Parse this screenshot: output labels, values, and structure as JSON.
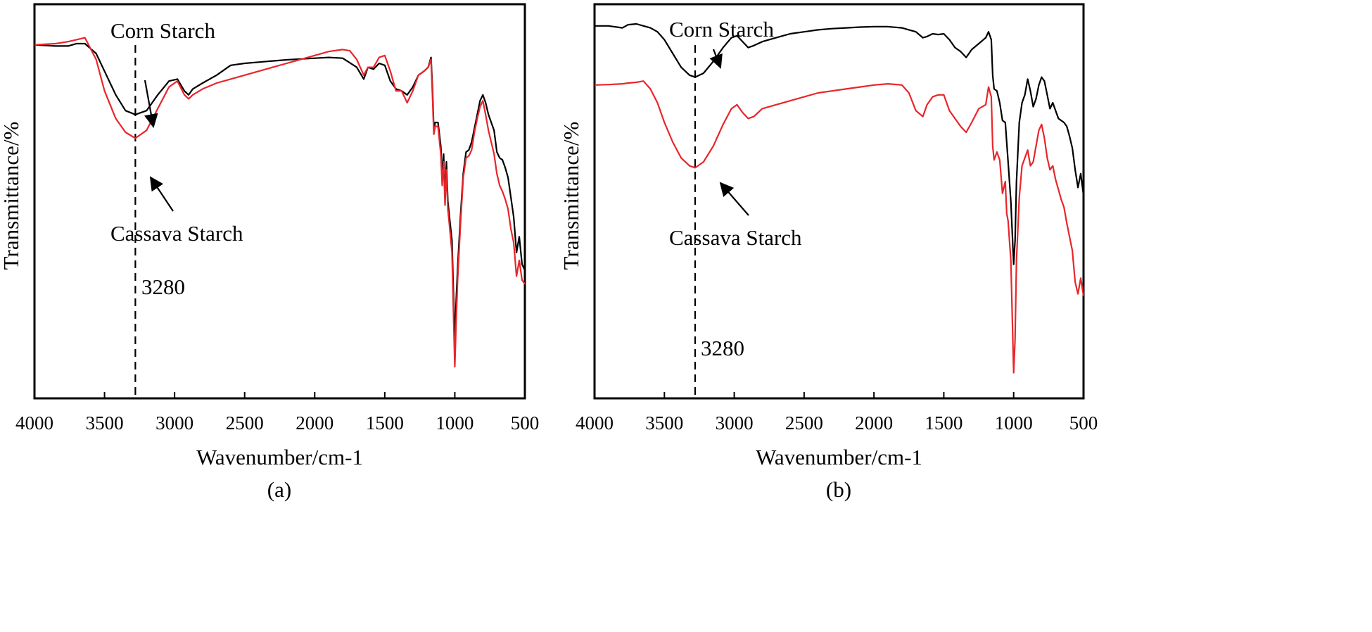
{
  "figure": {
    "panels": [
      "(a)",
      "(b)"
    ]
  },
  "colors": {
    "corn": "#000000",
    "cassava": "#e8262a",
    "frame": "#000000"
  },
  "chart_data": [
    {
      "type": "line",
      "panel": "(a)",
      "title": "",
      "caption": "(a)",
      "xlabel": "Wavenumber/cm-1",
      "ylabel": "Transmittance/%",
      "xlim": [
        4000,
        500
      ],
      "ylim": [
        0,
        100
      ],
      "x_reversed": true,
      "xticks": [
        4000,
        3500,
        3000,
        2500,
        2000,
        1500,
        1000,
        500
      ],
      "xtick_labels": [
        "4000",
        "3500",
        "3000",
        "2500",
        "2000",
        "1500",
        "1000",
        "500"
      ],
      "y_ticks_shown": false,
      "grid": false,
      "reference_line": {
        "x": 3280,
        "label": "3280",
        "style": "dashed"
      },
      "annotations": [
        {
          "text": "Corn Starch",
          "points_to": "Corn Starch"
        },
        {
          "text": "Cassava Starch",
          "points_to": "Cassava Starch"
        }
      ],
      "series": [
        {
          "name": "Corn Starch",
          "x": [
            4000,
            3850,
            3760,
            3700,
            3640,
            3560,
            3500,
            3420,
            3350,
            3280,
            3200,
            3120,
            3040,
            2980,
            2930,
            2900,
            2870,
            2800,
            2700,
            2600,
            2500,
            2400,
            2300,
            2200,
            2100,
            2000,
            1900,
            1800,
            1700,
            1650,
            1620,
            1580,
            1540,
            1500,
            1460,
            1420,
            1380,
            1340,
            1300,
            1260,
            1220,
            1190,
            1170,
            1160,
            1150,
            1140,
            1120,
            1100,
            1090,
            1080,
            1070,
            1060,
            1050,
            1040,
            1020,
            1000,
            990,
            980,
            960,
            940,
            920,
            900,
            880,
            860,
            840,
            820,
            800,
            780,
            760,
            740,
            720,
            700,
            680,
            660,
            640,
            620,
            600,
            580,
            560,
            540,
            520,
            500
          ],
          "values": [
            89.7,
            89.4,
            89.4,
            90.0,
            90.0,
            87.5,
            83.0,
            77.0,
            73.0,
            72.0,
            73.0,
            77.0,
            80.5,
            81.0,
            78.0,
            77.0,
            78.5,
            80.0,
            82.0,
            84.5,
            85.0,
            85.3,
            85.6,
            85.9,
            86.1,
            86.3,
            86.5,
            86.3,
            84.0,
            81.0,
            84.0,
            83.5,
            85.0,
            84.5,
            80.5,
            78.5,
            78.0,
            77.0,
            79.0,
            82.0,
            83.0,
            84.0,
            86.5,
            79.0,
            68.0,
            70.0,
            70.0,
            64.0,
            56.0,
            62.0,
            51.0,
            60.0,
            50.0,
            46.5,
            40.0,
            14.5,
            25.0,
            33.0,
            46.0,
            57.0,
            62.5,
            63.0,
            65.0,
            68.5,
            72.0,
            75.5,
            77.0,
            75.0,
            72.0,
            70.0,
            68.0,
            62.5,
            61.0,
            60.5,
            58.5,
            56.0,
            51.0,
            46.0,
            37.0,
            41.0,
            34.0,
            32.5
          ]
        },
        {
          "name": "Cassava Starch",
          "x": [
            4000,
            3850,
            3760,
            3700,
            3640,
            3560,
            3500,
            3420,
            3350,
            3280,
            3200,
            3120,
            3040,
            2980,
            2930,
            2900,
            2870,
            2800,
            2700,
            2600,
            2500,
            2400,
            2300,
            2200,
            2100,
            2000,
            1900,
            1800,
            1750,
            1700,
            1650,
            1620,
            1580,
            1540,
            1500,
            1460,
            1420,
            1380,
            1340,
            1300,
            1260,
            1220,
            1190,
            1170,
            1160,
            1150,
            1140,
            1120,
            1100,
            1090,
            1080,
            1070,
            1060,
            1050,
            1040,
            1020,
            1000,
            990,
            980,
            960,
            940,
            920,
            900,
            880,
            860,
            840,
            820,
            800,
            780,
            760,
            740,
            720,
            700,
            680,
            660,
            640,
            620,
            600,
            580,
            560,
            540,
            520,
            500
          ],
          "values": [
            89.7,
            90.0,
            90.5,
            91.0,
            91.5,
            86.0,
            78.0,
            71.0,
            67.5,
            66.0,
            68.0,
            73.5,
            79.0,
            80.5,
            77.0,
            76.0,
            77.0,
            78.5,
            80.0,
            81.0,
            82.0,
            83.0,
            84.0,
            85.0,
            86.0,
            87.0,
            88.0,
            88.5,
            88.2,
            86.0,
            82.0,
            84.0,
            84.0,
            86.5,
            87.0,
            83.0,
            78.0,
            78.0,
            75.0,
            78.0,
            82.0,
            83.0,
            84.0,
            86.0,
            77.0,
            67.0,
            69.0,
            69.0,
            62.0,
            54.0,
            60.0,
            49.0,
            58.0,
            48.0,
            44.5,
            37.0,
            8.0,
            20.0,
            30.0,
            44.0,
            56.0,
            61.0,
            61.5,
            63.0,
            67.5,
            71.0,
            74.0,
            75.5,
            72.0,
            68.0,
            65.0,
            62.0,
            57.0,
            54.0,
            52.5,
            50.5,
            48.0,
            43.0,
            39.5,
            31.0,
            35.0,
            30.0,
            29.0
          ]
        }
      ]
    },
    {
      "type": "line",
      "panel": "(b)",
      "title": "",
      "caption": "(b)",
      "xlabel": "Wavenumber/cm-1",
      "ylabel": "Transmittance/%",
      "xlim": [
        4000,
        500
      ],
      "ylim": [
        0,
        100
      ],
      "x_reversed": true,
      "xticks": [
        4000,
        3500,
        3000,
        2500,
        2000,
        1500,
        1000,
        500
      ],
      "xtick_labels": [
        "4000",
        "3500",
        "3000",
        "2500",
        "2000",
        "1500",
        "1000",
        "500"
      ],
      "y_ticks_shown": false,
      "grid": false,
      "reference_line": {
        "x": 3280,
        "label": "3280",
        "style": "dashed"
      },
      "annotations": [
        {
          "text": "Corn Starch",
          "points_to": "Corn Starch"
        },
        {
          "text": "Cassava Starch",
          "points_to": "Cassava Starch"
        }
      ],
      "series": [
        {
          "name": "Corn Starch",
          "x": [
            4000,
            3900,
            3800,
            3760,
            3700,
            3650,
            3600,
            3550,
            3500,
            3440,
            3380,
            3320,
            3280,
            3220,
            3150,
            3080,
            3020,
            2980,
            2940,
            2900,
            2860,
            2800,
            2700,
            2600,
            2500,
            2400,
            2300,
            2200,
            2100,
            2000,
            1900,
            1800,
            1750,
            1700,
            1650,
            1620,
            1580,
            1540,
            1500,
            1460,
            1420,
            1380,
            1340,
            1300,
            1250,
            1200,
            1180,
            1160,
            1150,
            1140,
            1120,
            1100,
            1080,
            1060,
            1050,
            1040,
            1020,
            1000,
            990,
            980,
            960,
            940,
            920,
            900,
            880,
            860,
            840,
            820,
            800,
            780,
            760,
            740,
            720,
            700,
            680,
            660,
            640,
            620,
            600,
            580,
            560,
            540,
            520,
            500
          ],
          "values": [
            94.5,
            94.5,
            94.0,
            94.8,
            95.0,
            94.5,
            94.0,
            93.0,
            91.0,
            87.5,
            84.0,
            82.0,
            81.5,
            82.5,
            85.5,
            89.0,
            91.5,
            92.0,
            90.5,
            89.0,
            89.5,
            90.5,
            91.5,
            92.5,
            93.0,
            93.5,
            93.8,
            94.0,
            94.2,
            94.3,
            94.3,
            94.0,
            93.5,
            93.0,
            91.5,
            91.8,
            92.5,
            92.3,
            92.5,
            91.0,
            89.0,
            88.0,
            86.5,
            88.5,
            90.0,
            91.5,
            93.0,
            91.0,
            82.0,
            78.5,
            78.0,
            75.0,
            70.5,
            70.0,
            65.0,
            60.0,
            50.0,
            34.0,
            40.0,
            55.0,
            70.0,
            75.0,
            77.0,
            81.0,
            78.0,
            74.0,
            76.0,
            79.5,
            81.5,
            80.5,
            77.0,
            73.5,
            75.0,
            73.0,
            71.0,
            70.5,
            70.0,
            69.0,
            66.5,
            63.5,
            58.0,
            53.5,
            57.0,
            51.5
          ]
        },
        {
          "name": "Cassava Starch",
          "x": [
            4000,
            3900,
            3800,
            3760,
            3700,
            3650,
            3600,
            3550,
            3500,
            3440,
            3380,
            3320,
            3280,
            3220,
            3150,
            3080,
            3020,
            2980,
            2940,
            2900,
            2860,
            2800,
            2700,
            2600,
            2500,
            2400,
            2300,
            2200,
            2100,
            2000,
            1900,
            1800,
            1750,
            1700,
            1650,
            1620,
            1580,
            1540,
            1500,
            1460,
            1420,
            1380,
            1340,
            1300,
            1250,
            1200,
            1180,
            1160,
            1150,
            1140,
            1120,
            1100,
            1080,
            1060,
            1050,
            1040,
            1020,
            1000,
            990,
            980,
            960,
            940,
            920,
            900,
            880,
            860,
            840,
            820,
            800,
            780,
            760,
            740,
            720,
            700,
            680,
            660,
            640,
            620,
            600,
            580,
            560,
            540,
            520,
            500
          ],
          "values": [
            79.5,
            79.6,
            79.8,
            80.0,
            80.2,
            80.5,
            78.5,
            75.0,
            70.0,
            65.0,
            61.0,
            59.0,
            58.5,
            60.0,
            64.0,
            69.5,
            73.5,
            74.5,
            72.5,
            71.0,
            71.5,
            73.5,
            74.5,
            75.5,
            76.5,
            77.5,
            78.0,
            78.5,
            79.0,
            79.5,
            79.8,
            79.5,
            77.5,
            73.0,
            71.5,
            74.5,
            76.5,
            77.0,
            77.0,
            73.0,
            71.0,
            69.0,
            67.5,
            70.0,
            73.5,
            74.5,
            79.0,
            76.5,
            64.0,
            60.5,
            62.5,
            60.5,
            52.0,
            55.0,
            47.0,
            45.0,
            35.0,
            6.5,
            15.0,
            35.0,
            51.0,
            59.0,
            61.0,
            63.0,
            59.0,
            60.0,
            64.0,
            68.0,
            69.5,
            66.0,
            61.0,
            58.0,
            59.0,
            55.5,
            53.0,
            50.5,
            48.5,
            44.5,
            41.0,
            37.5,
            29.5,
            26.5,
            30.5,
            26.0
          ]
        }
      ]
    }
  ]
}
